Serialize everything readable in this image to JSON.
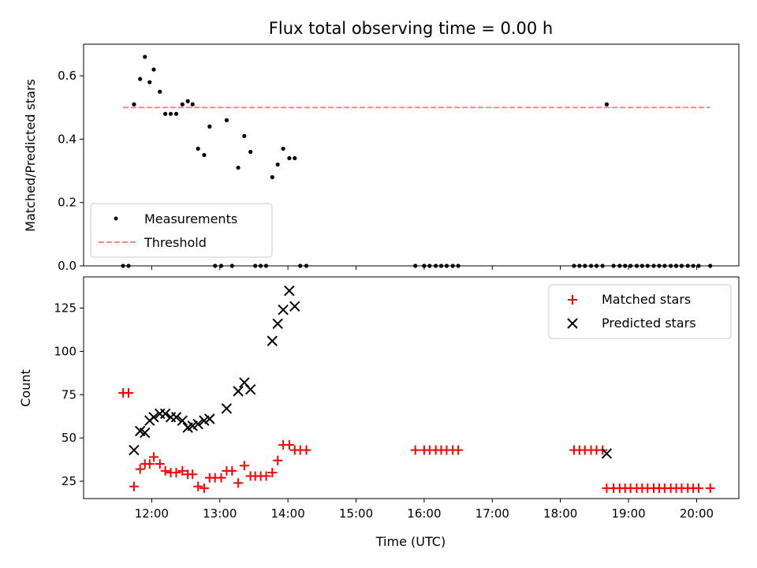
{
  "chart_data": [
    {
      "type": "scatter",
      "title": "Flux total observing time = 0.00 h",
      "xlabel": "",
      "ylabel": "Matched/Predicted stars",
      "xlim_hours": [
        11.0,
        20.62
      ],
      "ylim": [
        0,
        0.7
      ],
      "yticks": [
        0.0,
        0.2,
        0.4,
        0.6
      ],
      "ytick_labels": [
        "0.0",
        "0.2",
        "0.4",
        "0.6"
      ],
      "legend_position": "lower-left",
      "series": [
        {
          "name": "Measurements",
          "color": "#000000",
          "marker": "dot",
          "points": [
            [
              11.58,
              0
            ],
            [
              11.66,
              0
            ],
            [
              11.74,
              0.51
            ],
            [
              11.83,
              0.59
            ],
            [
              11.9,
              0.66
            ],
            [
              11.97,
              0.58
            ],
            [
              12.03,
              0.62
            ],
            [
              12.12,
              0.55
            ],
            [
              12.2,
              0.48
            ],
            [
              12.28,
              0.48
            ],
            [
              12.36,
              0.48
            ],
            [
              12.45,
              0.51
            ],
            [
              12.53,
              0.52
            ],
            [
              12.6,
              0.51
            ],
            [
              12.68,
              0.37
            ],
            [
              12.77,
              0.35
            ],
            [
              12.85,
              0.44
            ],
            [
              12.93,
              0
            ],
            [
              13.02,
              0
            ],
            [
              13.1,
              0.46
            ],
            [
              13.18,
              0
            ],
            [
              13.27,
              0.31
            ],
            [
              13.36,
              0.41
            ],
            [
              13.45,
              0.36
            ],
            [
              13.52,
              0
            ],
            [
              13.6,
              0
            ],
            [
              13.68,
              0
            ],
            [
              13.77,
              0.28
            ],
            [
              13.85,
              0.32
            ],
            [
              13.93,
              0.37
            ],
            [
              14.02,
              0.34
            ],
            [
              14.1,
              0.34
            ],
            [
              14.18,
              0
            ],
            [
              14.27,
              0
            ],
            [
              15.87,
              0
            ],
            [
              16.0,
              0
            ],
            [
              16.08,
              0
            ],
            [
              16.17,
              0
            ],
            [
              16.25,
              0
            ],
            [
              16.33,
              0
            ],
            [
              16.42,
              0
            ],
            [
              16.5,
              0
            ],
            [
              18.2,
              0
            ],
            [
              18.28,
              0
            ],
            [
              18.36,
              0
            ],
            [
              18.45,
              0
            ],
            [
              18.53,
              0
            ],
            [
              18.62,
              0
            ],
            [
              18.68,
              0.51
            ],
            [
              18.78,
              0
            ],
            [
              18.87,
              0
            ],
            [
              18.95,
              0
            ],
            [
              19.03,
              0
            ],
            [
              19.12,
              0
            ],
            [
              19.2,
              0
            ],
            [
              19.28,
              0
            ],
            [
              19.37,
              0
            ],
            [
              19.45,
              0
            ],
            [
              19.53,
              0
            ],
            [
              19.62,
              0
            ],
            [
              19.7,
              0
            ],
            [
              19.78,
              0
            ],
            [
              19.87,
              0
            ],
            [
              19.95,
              0
            ],
            [
              20.03,
              0
            ],
            [
              20.2,
              0
            ]
          ]
        },
        {
          "name": "Threshold",
          "color": "#ff7777",
          "style": "dashed",
          "points": [
            [
              11.58,
              0.5
            ],
            [
              20.2,
              0.5
            ]
          ]
        }
      ]
    },
    {
      "type": "scatter",
      "title": "",
      "xlabel": "Time (UTC)",
      "ylabel": "Count",
      "xlim_hours": [
        11.0,
        20.62
      ],
      "ylim": [
        15,
        143
      ],
      "yticks": [
        25,
        50,
        75,
        100,
        125
      ],
      "ytick_labels": [
        "25",
        "50",
        "75",
        "100",
        "125"
      ],
      "xticks_hours": [
        12,
        13,
        14,
        15,
        16,
        17,
        18,
        19,
        20
      ],
      "xtick_labels": [
        "12:00",
        "13:00",
        "14:00",
        "15:00",
        "16:00",
        "17:00",
        "18:00",
        "19:00",
        "20:00"
      ],
      "legend_position": "upper-right",
      "series": [
        {
          "name": "Matched stars",
          "color": "#ff0000",
          "marker": "plus",
          "points": [
            [
              11.58,
              76
            ],
            [
              11.66,
              76
            ],
            [
              11.74,
              22
            ],
            [
              11.83,
              32
            ],
            [
              11.9,
              35
            ],
            [
              11.97,
              35
            ],
            [
              12.03,
              39
            ],
            [
              12.12,
              35
            ],
            [
              12.2,
              31
            ],
            [
              12.28,
              30
            ],
            [
              12.36,
              30
            ],
            [
              12.45,
              31
            ],
            [
              12.53,
              29
            ],
            [
              12.6,
              29
            ],
            [
              12.68,
              22
            ],
            [
              12.77,
              21
            ],
            [
              12.85,
              27
            ],
            [
              12.93,
              27
            ],
            [
              13.02,
              27
            ],
            [
              13.1,
              31
            ],
            [
              13.18,
              31
            ],
            [
              13.27,
              24
            ],
            [
              13.36,
              34
            ],
            [
              13.45,
              28
            ],
            [
              13.52,
              28
            ],
            [
              13.6,
              28
            ],
            [
              13.68,
              28
            ],
            [
              13.77,
              30
            ],
            [
              13.85,
              37
            ],
            [
              13.93,
              46
            ],
            [
              14.02,
              46
            ],
            [
              14.1,
              43
            ],
            [
              14.18,
              43
            ],
            [
              14.27,
              43
            ],
            [
              15.87,
              43
            ],
            [
              16.0,
              43
            ],
            [
              16.08,
              43
            ],
            [
              16.17,
              43
            ],
            [
              16.25,
              43
            ],
            [
              16.33,
              43
            ],
            [
              16.42,
              43
            ],
            [
              16.5,
              43
            ],
            [
              18.2,
              43
            ],
            [
              18.28,
              43
            ],
            [
              18.36,
              43
            ],
            [
              18.45,
              43
            ],
            [
              18.53,
              43
            ],
            [
              18.62,
              43
            ],
            [
              18.68,
              21
            ],
            [
              18.78,
              21
            ],
            [
              18.87,
              21
            ],
            [
              18.95,
              21
            ],
            [
              19.03,
              21
            ],
            [
              19.12,
              21
            ],
            [
              19.2,
              21
            ],
            [
              19.28,
              21
            ],
            [
              19.37,
              21
            ],
            [
              19.45,
              21
            ],
            [
              19.53,
              21
            ],
            [
              19.62,
              21
            ],
            [
              19.7,
              21
            ],
            [
              19.78,
              21
            ],
            [
              19.87,
              21
            ],
            [
              19.95,
              21
            ],
            [
              20.03,
              21
            ],
            [
              20.2,
              21
            ]
          ]
        },
        {
          "name": "Predicted stars",
          "color": "#000000",
          "marker": "x",
          "points": [
            [
              11.74,
              43
            ],
            [
              11.83,
              54
            ],
            [
              11.9,
              53
            ],
            [
              11.97,
              60
            ],
            [
              12.03,
              62
            ],
            [
              12.12,
              64
            ],
            [
              12.2,
              64
            ],
            [
              12.28,
              62
            ],
            [
              12.36,
              62
            ],
            [
              12.45,
              60
            ],
            [
              12.53,
              56
            ],
            [
              12.6,
              57
            ],
            [
              12.68,
              58
            ],
            [
              12.77,
              60
            ],
            [
              12.85,
              61
            ],
            [
              13.1,
              67
            ],
            [
              13.27,
              77
            ],
            [
              13.36,
              82
            ],
            [
              13.45,
              78
            ],
            [
              13.77,
              106
            ],
            [
              13.85,
              116
            ],
            [
              13.93,
              124
            ],
            [
              14.02,
              135
            ],
            [
              14.1,
              126
            ],
            [
              18.68,
              41
            ]
          ]
        }
      ]
    }
  ]
}
